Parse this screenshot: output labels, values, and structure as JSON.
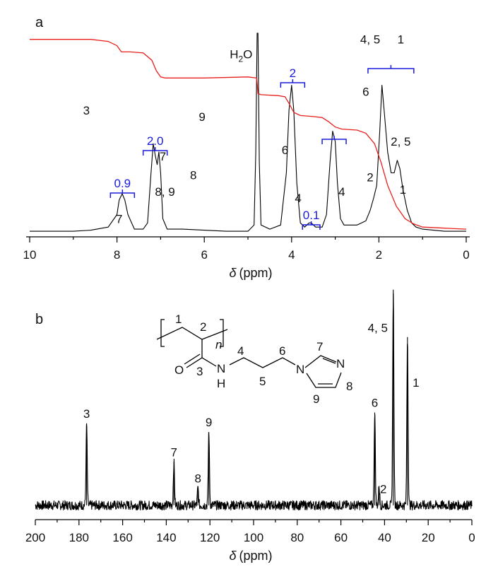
{
  "chart_data": [
    {
      "panel": "a",
      "type": "line",
      "xlabel_symbol": "δ",
      "xlabel_unit": "(ppm)",
      "xlim": [
        10,
        0
      ],
      "xticks": [
        10,
        8,
        6,
        4,
        2,
        0
      ],
      "ylabel": "",
      "grid": false,
      "series": [
        {
          "points": [
            [
              10.0,
              0.02
            ],
            [
              9.0,
              0.02
            ],
            [
              8.6,
              0.025
            ],
            [
              8.2,
              0.04
            ],
            [
              8.0,
              0.1
            ],
            [
              7.95,
              0.17
            ],
            [
              7.88,
              0.2
            ],
            [
              7.82,
              0.17
            ],
            [
              7.75,
              0.1
            ],
            [
              7.6,
              0.03
            ],
            [
              7.4,
              0.03
            ],
            [
              7.3,
              0.06
            ],
            [
              7.22,
              0.3
            ],
            [
              7.17,
              0.44
            ],
            [
              7.12,
              0.38
            ],
            [
              7.08,
              0.34
            ],
            [
              7.04,
              0.4
            ],
            [
              7.0,
              0.3
            ],
            [
              6.95,
              0.08
            ],
            [
              6.85,
              0.03
            ],
            [
              6.5,
              0.03
            ],
            [
              5.5,
              0.02
            ],
            [
              5.0,
              0.02
            ],
            [
              4.86,
              0.05
            ],
            [
              4.82,
              0.4
            ],
            [
              4.79,
              0.97
            ],
            [
              4.77,
              0.97
            ],
            [
              4.74,
              0.35
            ],
            [
              4.7,
              0.05
            ],
            [
              4.5,
              0.03
            ],
            [
              4.25,
              0.05
            ],
            [
              4.12,
              0.3
            ],
            [
              4.06,
              0.6
            ],
            [
              4.0,
              0.72
            ],
            [
              3.95,
              0.6
            ],
            [
              3.88,
              0.25
            ],
            [
              3.8,
              0.06
            ],
            [
              3.7,
              0.04
            ],
            [
              3.6,
              0.06
            ],
            [
              3.55,
              0.06
            ],
            [
              3.45,
              0.04
            ],
            [
              3.3,
              0.04
            ],
            [
              3.2,
              0.1
            ],
            [
              3.12,
              0.35
            ],
            [
              3.06,
              0.5
            ],
            [
              3.0,
              0.45
            ],
            [
              2.95,
              0.25
            ],
            [
              2.88,
              0.08
            ],
            [
              2.8,
              0.05
            ],
            [
              2.5,
              0.05
            ],
            [
              2.3,
              0.07
            ],
            [
              2.2,
              0.12
            ],
            [
              2.12,
              0.18
            ],
            [
              2.05,
              0.24
            ],
            [
              1.98,
              0.5
            ],
            [
              1.93,
              0.72
            ],
            [
              1.88,
              0.6
            ],
            [
              1.8,
              0.4
            ],
            [
              1.72,
              0.3
            ],
            [
              1.65,
              0.3
            ],
            [
              1.58,
              0.36
            ],
            [
              1.52,
              0.32
            ],
            [
              1.45,
              0.22
            ],
            [
              1.35,
              0.12
            ],
            [
              1.25,
              0.06
            ],
            [
              1.15,
              0.04
            ],
            [
              1.0,
              0.03
            ],
            [
              0.5,
              0.02
            ],
            [
              0.0,
              0.02
            ]
          ]
        },
        {
          "points": [
            [
              10.0,
              0.94
            ],
            [
              8.6,
              0.94
            ],
            [
              8.2,
              0.93
            ],
            [
              8.0,
              0.91
            ],
            [
              7.9,
              0.88
            ],
            [
              7.7,
              0.88
            ],
            [
              7.4,
              0.875
            ],
            [
              7.2,
              0.84
            ],
            [
              7.1,
              0.79
            ],
            [
              7.0,
              0.76
            ],
            [
              6.9,
              0.755
            ],
            [
              6.0,
              0.755
            ],
            [
              5.0,
              0.76
            ],
            [
              4.8,
              0.755
            ],
            [
              4.77,
              0.68
            ],
            [
              4.7,
              0.675
            ],
            [
              4.3,
              0.67
            ],
            [
              4.15,
              0.665
            ],
            [
              4.05,
              0.63
            ],
            [
              3.95,
              0.59
            ],
            [
              3.8,
              0.575
            ],
            [
              3.5,
              0.57
            ],
            [
              3.3,
              0.565
            ],
            [
              3.15,
              0.545
            ],
            [
              3.0,
              0.52
            ],
            [
              2.85,
              0.51
            ],
            [
              2.5,
              0.505
            ],
            [
              2.3,
              0.49
            ],
            [
              2.1,
              0.44
            ],
            [
              1.95,
              0.35
            ],
            [
              1.8,
              0.24
            ],
            [
              1.6,
              0.14
            ],
            [
              1.4,
              0.08
            ],
            [
              1.2,
              0.055
            ],
            [
              1.0,
              0.04
            ],
            [
              0.5,
              0.035
            ],
            [
              0.0,
              0.03
            ]
          ]
        }
      ],
      "labels": [
        {
          "x": 8.7,
          "y": 0.58,
          "text": "3"
        },
        {
          "x": 6.05,
          "y": 0.55,
          "text": "9"
        },
        {
          "x": 7.95,
          "y": 0.06,
          "text": "7"
        },
        {
          "x": 6.95,
          "y": 0.36,
          "text": "7"
        },
        {
          "x": 6.9,
          "y": 0.19,
          "text": "8, 9"
        },
        {
          "x": 6.25,
          "y": 0.27,
          "text": "8"
        },
        {
          "x": 4.15,
          "y": 0.39,
          "text": "6"
        },
        {
          "x": 3.85,
          "y": 0.16,
          "text": "4"
        },
        {
          "x": 2.85,
          "y": 0.19,
          "text": "4"
        },
        {
          "x": 2.3,
          "y": 0.67,
          "text": "6"
        },
        {
          "x": 2.2,
          "y": 0.26,
          "text": "2"
        },
        {
          "x": 1.5,
          "y": 0.43,
          "text": "2, 5"
        },
        {
          "x": 1.45,
          "y": 0.2,
          "text": "1"
        },
        {
          "x": 2.2,
          "y": 0.92,
          "text": "4, 5"
        },
        {
          "x": 1.5,
          "y": 0.92,
          "text": "1"
        }
      ],
      "integrals": [
        {
          "from": 8.15,
          "to": 7.6,
          "value": "0.9"
        },
        {
          "from": 7.4,
          "to": 6.85,
          "value": "2.0"
        },
        {
          "from": 4.25,
          "to": 3.7,
          "value": "2"
        },
        {
          "from": 3.75,
          "to": 3.35,
          "value": "0.1"
        },
        {
          "from": 3.3,
          "to": 2.75,
          "value": ""
        },
        {
          "from": 2.25,
          "to": 1.2,
          "value": ""
        }
      ],
      "h2o_label": {
        "x": 4.77,
        "y": 0.85,
        "text": "H",
        "sub": "2",
        "tail": "O"
      }
    },
    {
      "panel": "b",
      "type": "line",
      "xlabel_symbol": "δ",
      "xlabel_unit": "(ppm)",
      "xlim": [
        200,
        0
      ],
      "xticks": [
        200,
        180,
        160,
        140,
        120,
        100,
        80,
        60,
        40,
        20,
        0
      ],
      "ylabel": "",
      "grid": false,
      "baseline": 0.06,
      "noise": 0.022,
      "peaks": [
        {
          "ppm": 176.5,
          "height": 0.38,
          "label": "3"
        },
        {
          "ppm": 136.5,
          "height": 0.2,
          "label": "7"
        },
        {
          "ppm": 125.5,
          "height": 0.08,
          "label": "8"
        },
        {
          "ppm": 120.5,
          "height": 0.34,
          "label": "9"
        },
        {
          "ppm": 44.5,
          "height": 0.43,
          "label": "6"
        },
        {
          "ppm": 42.5,
          "height": 0.09,
          "label": "2"
        },
        {
          "ppm": 36.0,
          "height": 1.0,
          "label": "4, 5"
        },
        {
          "ppm": 29.5,
          "height": 0.78,
          "label": "1"
        }
      ]
    }
  ],
  "panel_a_label": "a",
  "panel_b_label": "b",
  "structure": {
    "n_label": "n",
    "O": "O",
    "N": "N",
    "NH_N": "N",
    "NH_H": "H",
    "ring_N1": "N",
    "ring_N3": "N",
    "pos": {
      "c1": "1",
      "c2": "2",
      "c3": "3",
      "c4": "4",
      "c5": "5",
      "c6": "6",
      "c7": "7",
      "c8": "8",
      "c9": "9"
    }
  }
}
